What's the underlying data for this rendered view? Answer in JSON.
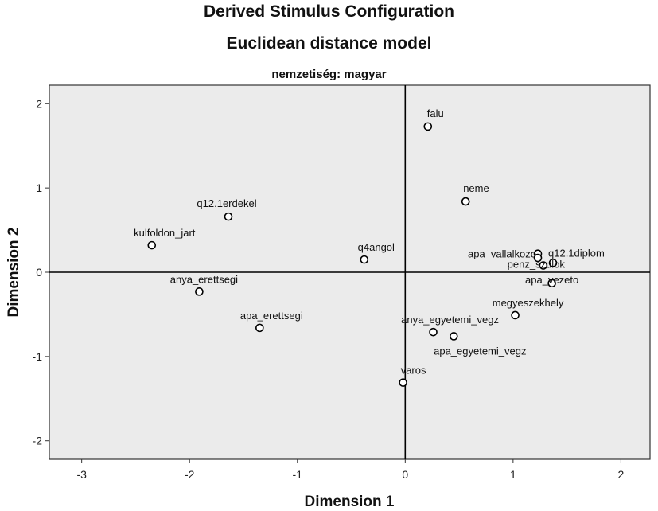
{
  "chart_data": {
    "type": "scatter",
    "title": "Derived Stimulus Configuration",
    "subtitle": "Euclidean distance model",
    "panel_title": "nemzetiség: magyar",
    "xlabel": "Dimension 1",
    "ylabel": "Dimension 2",
    "xlim": [
      -3.3,
      2.27
    ],
    "ylim": [
      -2.22,
      2.22
    ],
    "xticks": [
      -3,
      -2,
      -1,
      0,
      1,
      2
    ],
    "yticks": [
      -2,
      -1,
      0,
      1,
      2
    ],
    "grid": false,
    "reference_lines": {
      "x": 0,
      "y": 0
    },
    "points": [
      {
        "label": "falu",
        "x": 0.21,
        "y": 1.73
      },
      {
        "label": "neme",
        "x": 0.56,
        "y": 0.84
      },
      {
        "label": "q12.1erdekel",
        "x": -1.64,
        "y": 0.66
      },
      {
        "label": "kulfoldon_jart",
        "x": -2.35,
        "y": 0.32
      },
      {
        "label": "q4angol",
        "x": -0.38,
        "y": 0.15
      },
      {
        "label": "apa_vallalkozo",
        "x": 1.23,
        "y": 0.22
      },
      {
        "label": "q12.1diplom",
        "x": 1.37,
        "y": 0.11
      },
      {
        "label": "penz_szulok",
        "x": 1.28,
        "y": 0.08
      },
      {
        "label": "",
        "x": 1.23,
        "y": 0.17
      },
      {
        "label": "apa_vezeto",
        "x": 1.36,
        "y": -0.13
      },
      {
        "label": "anya_erettsegi",
        "x": -1.91,
        "y": -0.23
      },
      {
        "label": "megyeszekhely",
        "x": 1.02,
        "y": -0.51
      },
      {
        "label": "apa_erettsegi",
        "x": -1.35,
        "y": -0.66
      },
      {
        "label": "anya_egyetemi_vegz",
        "x": 0.26,
        "y": -0.71
      },
      {
        "label": "apa_egyetemi_vegz",
        "x": 0.45,
        "y": -0.76
      },
      {
        "label": "varos",
        "x": -0.02,
        "y": -1.31
      }
    ]
  }
}
